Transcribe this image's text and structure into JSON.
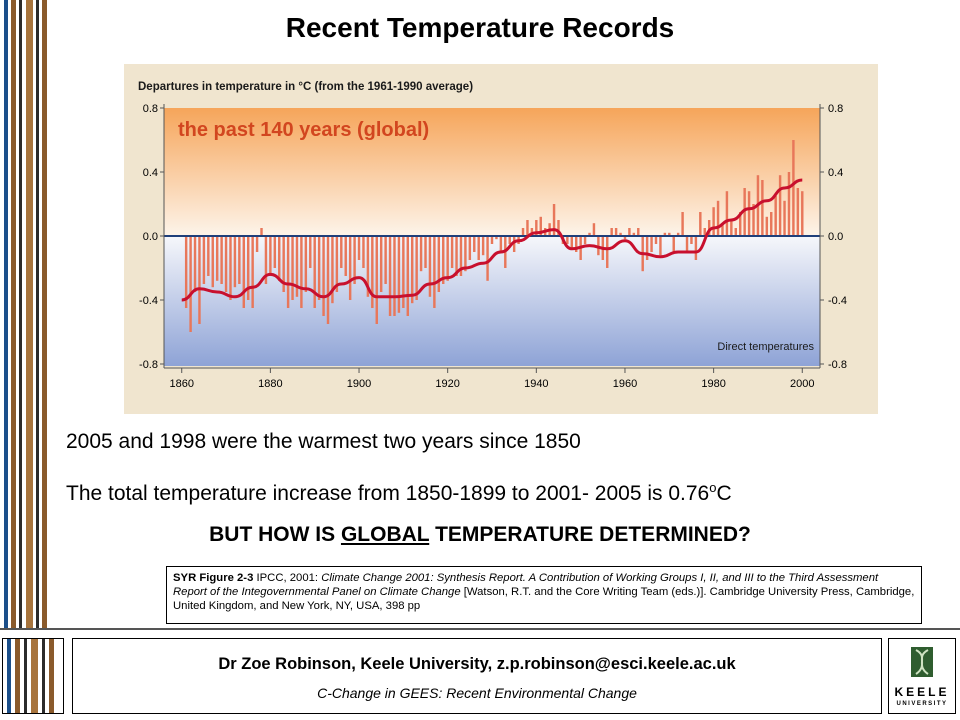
{
  "slide": {
    "title": "Recent Temperature Records",
    "line1": "2005 and 1998 were the warmest two years since 1850",
    "line2_main": "The total temperature increase from 1850-1899 to 2001- 2005 is 0.76",
    "line2_sup": "o",
    "line2_unit": "C",
    "question_pre": "BUT HOW IS ",
    "question_underlined": "GLOBAL",
    "question_post": " TEMPERATURE DETERMINED?",
    "citation": {
      "bold": "SYR Figure 2-3",
      "text1": " IPCC, 2001: ",
      "italic1": "Climate Change 2001: Synthesis Report. A Contribution of Working Groups I, II, and III to the Third Assessment Report of the Integovernmental Panel on Climate Change",
      "text2": " [Watson, R.T. and the Core Writing Team (eds.)]. Cambridge University Press, Cambridge, United Kingdom, and New York, NY, USA, 398 pp"
    }
  },
  "footer": {
    "name": "Dr Zoe Robinson, Keele University, z.p.robinson@esci.keele.ac.uk",
    "course": "C-Change in GEES: Recent Environmental Change",
    "logo_line1": "KEELE",
    "logo_line2": "UNIVERSITY"
  },
  "colors": {
    "warm_bar": "#e8775a",
    "smooth_line": "#c8102e",
    "zero_line": "#1f3f7a",
    "warm_top": "#f5a561",
    "cool_bottom": "#8ea3d6",
    "stripe_brown": "#8a5a2b",
    "stripe_dark": "#222222"
  },
  "chart_data": {
    "type": "bar",
    "title": "Departures in temperature in °C (from the 1961-1990 average)",
    "subtitle": "the past 140 years (global)",
    "annotation": "Direct temperatures",
    "ylim": [
      -0.8,
      0.8
    ],
    "xlim": [
      1856,
      2004
    ],
    "x_ticks": [
      "1860",
      "1880",
      "1900",
      "1920",
      "1940",
      "1960",
      "1980",
      "2000"
    ],
    "y_ticks": [
      "0.8",
      "0.4",
      "0.0",
      "-0.4",
      "-0.8"
    ],
    "grid": false,
    "series": [
      {
        "kind": "annual_anomaly_bars",
        "x": [
          1861,
          1862,
          1863,
          1864,
          1865,
          1866,
          1867,
          1868,
          1869,
          1870,
          1871,
          1872,
          1873,
          1874,
          1875,
          1876,
          1877,
          1878,
          1879,
          1880,
          1881,
          1882,
          1883,
          1884,
          1885,
          1886,
          1887,
          1888,
          1889,
          1890,
          1891,
          1892,
          1893,
          1894,
          1895,
          1896,
          1897,
          1898,
          1899,
          1900,
          1901,
          1902,
          1903,
          1904,
          1905,
          1906,
          1907,
          1908,
          1909,
          1910,
          1911,
          1912,
          1913,
          1914,
          1915,
          1916,
          1917,
          1918,
          1919,
          1920,
          1921,
          1922,
          1923,
          1924,
          1925,
          1926,
          1927,
          1928,
          1929,
          1930,
          1931,
          1932,
          1933,
          1934,
          1935,
          1936,
          1937,
          1938,
          1939,
          1940,
          1941,
          1942,
          1943,
          1944,
          1945,
          1946,
          1947,
          1948,
          1949,
          1950,
          1951,
          1952,
          1953,
          1954,
          1955,
          1956,
          1957,
          1958,
          1959,
          1960,
          1961,
          1962,
          1963,
          1964,
          1965,
          1966,
          1967,
          1968,
          1969,
          1970,
          1971,
          1972,
          1973,
          1974,
          1975,
          1976,
          1977,
          1978,
          1979,
          1980,
          1981,
          1982,
          1983,
          1984,
          1985,
          1986,
          1987,
          1988,
          1989,
          1990,
          1991,
          1992,
          1993,
          1994,
          1995,
          1996,
          1997,
          1998,
          1999,
          2000
        ],
        "values": [
          -0.45,
          -0.6,
          -0.35,
          -0.55,
          -0.3,
          -0.25,
          -0.32,
          -0.28,
          -0.3,
          -0.35,
          -0.4,
          -0.32,
          -0.3,
          -0.45,
          -0.4,
          -0.45,
          -0.1,
          0.05,
          -0.3,
          -0.25,
          -0.2,
          -0.28,
          -0.35,
          -0.45,
          -0.4,
          -0.38,
          -0.45,
          -0.35,
          -0.2,
          -0.45,
          -0.4,
          -0.5,
          -0.55,
          -0.42,
          -0.35,
          -0.2,
          -0.25,
          -0.4,
          -0.3,
          -0.15,
          -0.2,
          -0.38,
          -0.45,
          -0.55,
          -0.35,
          -0.3,
          -0.5,
          -0.5,
          -0.48,
          -0.45,
          -0.5,
          -0.42,
          -0.4,
          -0.22,
          -0.2,
          -0.38,
          -0.45,
          -0.35,
          -0.3,
          -0.28,
          -0.2,
          -0.25,
          -0.25,
          -0.22,
          -0.15,
          -0.1,
          -0.15,
          -0.12,
          -0.28,
          -0.05,
          -0.02,
          -0.1,
          -0.2,
          -0.05,
          -0.1,
          -0.05,
          0.05,
          0.1,
          0.05,
          0.1,
          0.12,
          0.05,
          0.08,
          0.2,
          0.1,
          -0.05,
          -0.05,
          -0.08,
          -0.1,
          -0.15,
          -0.05,
          0.02,
          0.08,
          -0.12,
          -0.15,
          -0.2,
          0.05,
          0.05,
          0.02,
          -0.02,
          0.05,
          0.02,
          0.05,
          -0.22,
          -0.15,
          -0.1,
          -0.05,
          -0.12,
          0.02,
          0.02,
          -0.1,
          0.02,
          0.15,
          -0.1,
          -0.05,
          -0.15,
          0.15,
          0.05,
          0.1,
          0.18,
          0.22,
          0.08,
          0.28,
          0.1,
          0.05,
          0.15,
          0.3,
          0.28,
          0.2,
          0.38,
          0.35,
          0.12,
          0.15,
          0.25,
          0.38,
          0.22,
          0.4,
          0.6,
          0.3,
          0.28
        ]
      },
      {
        "kind": "smoothed_curve",
        "x": [
          1860,
          1864,
          1868,
          1872,
          1876,
          1880,
          1884,
          1888,
          1892,
          1896,
          1900,
          1904,
          1908,
          1912,
          1916,
          1920,
          1924,
          1928,
          1932,
          1936,
          1940,
          1944,
          1948,
          1952,
          1956,
          1960,
          1964,
          1968,
          1972,
          1976,
          1980,
          1984,
          1988,
          1992,
          1996,
          2000
        ],
        "values": [
          -0.4,
          -0.33,
          -0.35,
          -0.38,
          -0.32,
          -0.24,
          -0.3,
          -0.33,
          -0.38,
          -0.3,
          -0.26,
          -0.38,
          -0.38,
          -0.37,
          -0.3,
          -0.26,
          -0.2,
          -0.17,
          -0.1,
          -0.03,
          0.02,
          0.04,
          -0.08,
          -0.06,
          -0.08,
          -0.03,
          -0.11,
          -0.13,
          -0.1,
          -0.1,
          0.05,
          0.1,
          0.17,
          0.22,
          0.3,
          0.35
        ]
      }
    ]
  }
}
